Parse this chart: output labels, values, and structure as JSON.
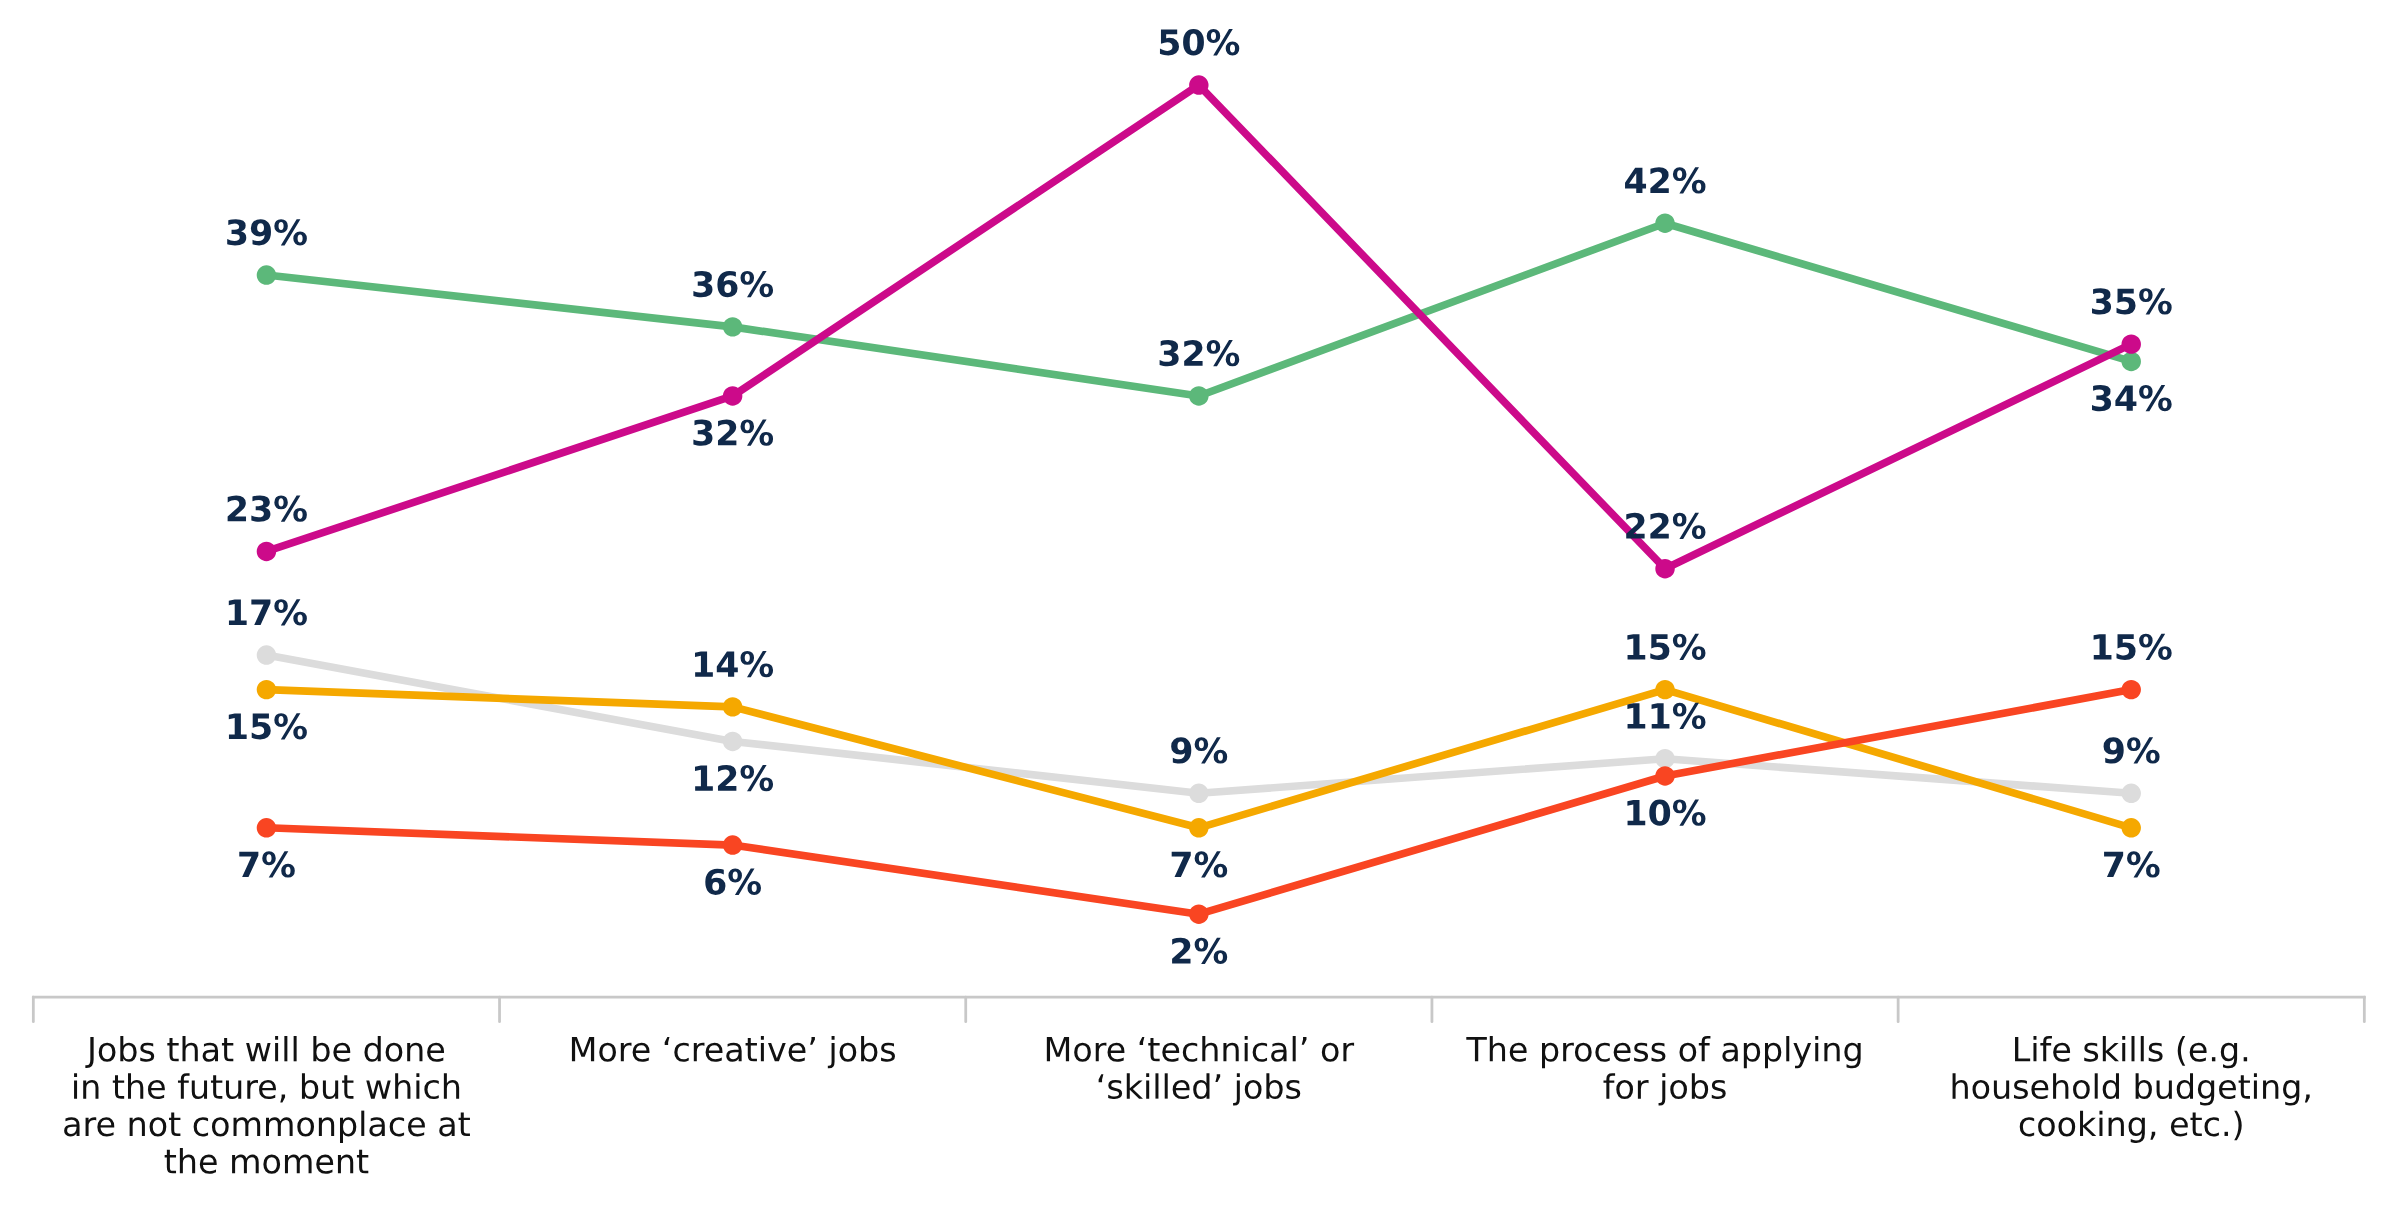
{
  "chart_data": {
    "type": "line",
    "categories": [
      "Jobs that will be done in the future, but which are not commonplace at the moment",
      "More ‘creative’ jobs",
      "More ‘technical’ or ‘skilled’ jobs",
      "The process of applying for jobs",
      "Life skills (e.g. household budgeting, cooking, etc.)"
    ],
    "series": [
      {
        "color": "#5cb87a",
        "values": [
          39,
          36,
          32,
          42,
          34
        ],
        "value_labels": [
          "39%",
          "36%",
          "32%",
          "42%",
          "34%"
        ]
      },
      {
        "color": "#cc0a8a",
        "values": [
          23,
          32,
          50,
          22,
          35
        ],
        "value_labels": [
          "23%",
          "32%",
          "50%",
          "22%",
          "35%"
        ]
      },
      {
        "color": "#dcdcdc",
        "values": [
          17,
          12,
          9,
          11,
          9
        ],
        "value_labels": [
          "17%",
          "12%",
          "9%",
          "11%",
          "9%"
        ]
      },
      {
        "color": "#f5a800",
        "values": [
          15,
          14,
          7,
          15,
          7
        ],
        "value_labels": [
          "15%",
          "14%",
          "7%",
          "15%",
          "7%"
        ]
      },
      {
        "color": "#f94522",
        "values": [
          7,
          6,
          2,
          10,
          15
        ],
        "value_labels": [
          "7%",
          "6%",
          "2%",
          "10%",
          "15%"
        ]
      }
    ],
    "marker": "circle",
    "line_style": "solid",
    "grid": false,
    "legend": false
  }
}
